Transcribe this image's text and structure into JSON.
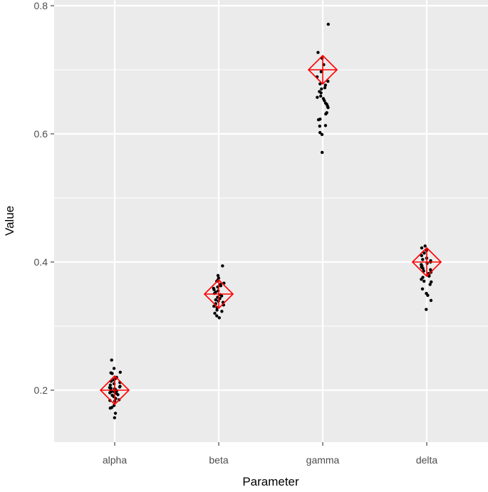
{
  "chart_data": {
    "type": "scatter",
    "subtype": "jittered strip plot with reference markers",
    "xlabel": "Parameter",
    "ylabel": "Value",
    "categories": [
      "alpha",
      "beta",
      "gamma",
      "delta"
    ],
    "ylim": [
      0.12,
      0.81
    ],
    "y_ticks": [
      0.2,
      0.4,
      0.6,
      0.8
    ],
    "y_tick_labels": [
      "0.2",
      "0.4",
      "0.6",
      "0.8"
    ],
    "grid": true,
    "legend": "none",
    "reference_values": [
      0.2,
      0.35,
      0.7,
      0.4
    ],
    "series": [
      {
        "category": "alpha",
        "values": [
          0.157,
          0.164,
          0.172,
          0.173,
          0.176,
          0.183,
          0.184,
          0.185,
          0.187,
          0.19,
          0.192,
          0.193,
          0.195,
          0.196,
          0.197,
          0.198,
          0.199,
          0.2,
          0.201,
          0.202,
          0.203,
          0.204,
          0.205,
          0.206,
          0.208,
          0.21,
          0.212,
          0.214,
          0.216,
          0.218,
          0.22,
          0.226,
          0.227,
          0.228,
          0.234,
          0.247
        ]
      },
      {
        "category": "beta",
        "values": [
          0.313,
          0.316,
          0.32,
          0.323,
          0.325,
          0.329,
          0.331,
          0.333,
          0.335,
          0.337,
          0.339,
          0.341,
          0.343,
          0.345,
          0.347,
          0.349,
          0.351,
          0.353,
          0.355,
          0.357,
          0.359,
          0.361,
          0.363,
          0.365,
          0.367,
          0.37,
          0.372,
          0.375,
          0.379,
          0.394
        ]
      },
      {
        "category": "gamma",
        "values": [
          0.571,
          0.599,
          0.602,
          0.612,
          0.613,
          0.622,
          0.623,
          0.631,
          0.633,
          0.641,
          0.643,
          0.646,
          0.648,
          0.652,
          0.655,
          0.657,
          0.659,
          0.664,
          0.666,
          0.67,
          0.672,
          0.676,
          0.678,
          0.682,
          0.689,
          0.697,
          0.708,
          0.718,
          0.727,
          0.771
        ]
      },
      {
        "category": "delta",
        "values": [
          0.326,
          0.34,
          0.348,
          0.351,
          0.358,
          0.365,
          0.369,
          0.37,
          0.373,
          0.376,
          0.378,
          0.38,
          0.382,
          0.384,
          0.386,
          0.388,
          0.39,
          0.392,
          0.394,
          0.396,
          0.398,
          0.4,
          0.402,
          0.404,
          0.406,
          0.41,
          0.414,
          0.418,
          0.422,
          0.425
        ]
      }
    ],
    "colors": {
      "panel": "#ebebeb",
      "grid": "#ffffff",
      "points": "#000000",
      "reference": "#ff0000",
      "tick_text": "#4d4d4d",
      "title_text": "#000000"
    }
  }
}
